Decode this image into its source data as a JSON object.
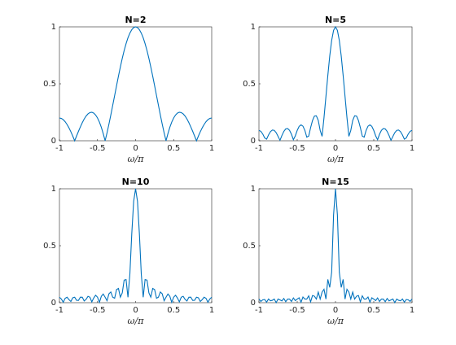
{
  "chart_data": [
    {
      "type": "line",
      "title": "N=2",
      "xlabel": "ω/π",
      "color": "#0072bd",
      "x": [
        -1,
        -0.975,
        -0.95,
        -0.925,
        -0.9,
        -0.875,
        -0.85,
        -0.825,
        -0.8,
        -0.775,
        -0.75,
        -0.725,
        -0.7,
        -0.675,
        -0.65,
        -0.625,
        -0.6,
        -0.575,
        -0.55,
        -0.525,
        -0.5,
        -0.475,
        -0.45,
        -0.425,
        -0.4,
        -0.375,
        -0.35,
        -0.325,
        -0.3,
        -0.275,
        -0.25,
        -0.225,
        -0.2,
        -0.175,
        -0.15,
        -0.125,
        -0.1,
        -0.075,
        -0.05,
        -0.025,
        0,
        0.025,
        0.05,
        0.075,
        0.1,
        0.125,
        0.15,
        0.175,
        0.2,
        0.225,
        0.25,
        0.275,
        0.3,
        0.325,
        0.35,
        0.375,
        0.4,
        0.425,
        0.45,
        0.475,
        0.5,
        0.525,
        0.55,
        0.575,
        0.6,
        0.625,
        0.65,
        0.675,
        0.7,
        0.725,
        0.75,
        0.775,
        0.8,
        0.825,
        0.85,
        0.875,
        0.9,
        0.925,
        0.95,
        0.975,
        1
      ],
      "values": [
        0.2,
        0.196,
        0.185,
        0.167,
        0.143,
        0.113,
        0.079,
        0.041,
        0,
        0.042,
        0.083,
        0.122,
        0.159,
        0.191,
        0.217,
        0.236,
        0.247,
        0.25,
        0.243,
        0.226,
        0.2,
        0.164,
        0.118,
        0.063,
        0,
        0.07,
        0.146,
        0.227,
        0.312,
        0.397,
        0.483,
        0.567,
        0.647,
        0.723,
        0.792,
        0.852,
        0.904,
        0.945,
        0.975,
        0.994,
        1,
        0.994,
        0.975,
        0.945,
        0.904,
        0.852,
        0.792,
        0.723,
        0.647,
        0.567,
        0.483,
        0.397,
        0.312,
        0.227,
        0.146,
        0.07,
        0,
        0.063,
        0.118,
        0.164,
        0.2,
        0.226,
        0.243,
        0.25,
        0.247,
        0.236,
        0.217,
        0.191,
        0.159,
        0.122,
        0.083,
        0.042,
        0,
        0.041,
        0.079,
        0.113,
        0.143,
        0.167,
        0.185,
        0.196,
        0.2
      ],
      "xlim": [
        -1,
        1
      ],
      "ylim": [
        0,
        1
      ],
      "xticks": [
        -1,
        -0.5,
        0,
        0.5,
        1
      ],
      "yticks": [
        0,
        0.5,
        1
      ]
    },
    {
      "type": "line",
      "title": "N=5",
      "xlabel": "ω/π",
      "color": "#0072bd",
      "x": [
        -1,
        -0.975,
        -0.95,
        -0.925,
        -0.9,
        -0.875,
        -0.85,
        -0.825,
        -0.8,
        -0.775,
        -0.75,
        -0.725,
        -0.7,
        -0.675,
        -0.65,
        -0.625,
        -0.6,
        -0.575,
        -0.55,
        -0.525,
        -0.5,
        -0.475,
        -0.45,
        -0.425,
        -0.4,
        -0.375,
        -0.35,
        -0.325,
        -0.3,
        -0.275,
        -0.25,
        -0.225,
        -0.2,
        -0.175,
        -0.15,
        -0.125,
        -0.1,
        -0.075,
        -0.05,
        -0.025,
        0,
        0.025,
        0.05,
        0.075,
        0.1,
        0.125,
        0.15,
        0.175,
        0.2,
        0.225,
        0.25,
        0.275,
        0.3,
        0.325,
        0.35,
        0.375,
        0.4,
        0.425,
        0.45,
        0.475,
        0.5,
        0.525,
        0.55,
        0.575,
        0.6,
        0.625,
        0.65,
        0.675,
        0.7,
        0.725,
        0.75,
        0.775,
        0.8,
        0.825,
        0.85,
        0.875,
        0.9,
        0.925,
        0.95,
        0.975,
        1
      ],
      "values": [
        0.091,
        0.083,
        0.059,
        0.025,
        0.014,
        0.051,
        0.08,
        0.094,
        0.091,
        0.071,
        0.038,
        0.004,
        0.046,
        0.082,
        0.104,
        0.107,
        0.091,
        0.057,
        0.009,
        0.043,
        0.091,
        0.126,
        0.14,
        0.128,
        0.091,
        0.032,
        0.041,
        0.115,
        0.178,
        0.217,
        0.219,
        0.178,
        0.091,
        0.039,
        0.203,
        0.387,
        0.574,
        0.744,
        0.881,
        0.969,
        1,
        0.969,
        0.881,
        0.744,
        0.574,
        0.387,
        0.203,
        0.039,
        0.091,
        0.178,
        0.219,
        0.217,
        0.178,
        0.115,
        0.041,
        0.032,
        0.091,
        0.128,
        0.14,
        0.126,
        0.091,
        0.043,
        0.009,
        0.057,
        0.091,
        0.107,
        0.104,
        0.082,
        0.046,
        0.004,
        0.038,
        0.071,
        0.091,
        0.094,
        0.08,
        0.051,
        0.014,
        0.025,
        0.059,
        0.083,
        0.091
      ],
      "xlim": [
        -1,
        1
      ],
      "ylim": [
        0,
        1
      ],
      "xticks": [
        -1,
        -0.5,
        0,
        0.5,
        1
      ],
      "yticks": [
        0,
        0.5,
        1
      ]
    },
    {
      "type": "line",
      "title": "N=10",
      "xlabel": "ω/π",
      "color": "#0072bd",
      "x": [
        -1,
        -0.975,
        -0.95,
        -0.925,
        -0.9,
        -0.875,
        -0.85,
        -0.825,
        -0.8,
        -0.775,
        -0.75,
        -0.725,
        -0.7,
        -0.675,
        -0.65,
        -0.625,
        -0.6,
        -0.575,
        -0.55,
        -0.525,
        -0.5,
        -0.475,
        -0.45,
        -0.425,
        -0.4,
        -0.375,
        -0.35,
        -0.325,
        -0.3,
        -0.275,
        -0.25,
        -0.225,
        -0.2,
        -0.175,
        -0.15,
        -0.125,
        -0.1,
        -0.075,
        -0.05,
        -0.025,
        0,
        0.025,
        0.05,
        0.075,
        0.1,
        0.125,
        0.15,
        0.175,
        0.2,
        0.225,
        0.25,
        0.275,
        0.3,
        0.325,
        0.35,
        0.375,
        0.4,
        0.425,
        0.45,
        0.475,
        0.5,
        0.525,
        0.55,
        0.575,
        0.6,
        0.625,
        0.65,
        0.675,
        0.7,
        0.725,
        0.75,
        0.775,
        0.8,
        0.825,
        0.85,
        0.875,
        0.9,
        0.925,
        0.95,
        0.975,
        1
      ],
      "values": [
        0.048,
        0.032,
        0.004,
        0.038,
        0.048,
        0.027,
        0.011,
        0.043,
        0.048,
        0.021,
        0.02,
        0.049,
        0.048,
        0.015,
        0.029,
        0.056,
        0.048,
        0.007,
        0.041,
        0.065,
        0.048,
        0.003,
        0.056,
        0.076,
        0.048,
        0.017,
        0.078,
        0.094,
        0.048,
        0.039,
        0.115,
        0.125,
        0.048,
        0.086,
        0.198,
        0.203,
        0.048,
        0.251,
        0.605,
        0.891,
        1,
        0.891,
        0.605,
        0.251,
        0.048,
        0.203,
        0.198,
        0.086,
        0.048,
        0.125,
        0.115,
        0.039,
        0.048,
        0.094,
        0.078,
        0.017,
        0.048,
        0.076,
        0.056,
        0.003,
        0.048,
        0.065,
        0.041,
        0.007,
        0.048,
        0.056,
        0.029,
        0.015,
        0.048,
        0.049,
        0.02,
        0.021,
        0.048,
        0.043,
        0.011,
        0.027,
        0.048,
        0.038,
        0.004,
        0.032,
        0.048
      ],
      "xlim": [
        -1,
        1
      ],
      "ylim": [
        0,
        1
      ],
      "xticks": [
        -1,
        -0.5,
        0,
        0.5,
        1
      ],
      "yticks": [
        0,
        0.5,
        1
      ]
    },
    {
      "type": "line",
      "title": "N=15",
      "xlabel": "ω/π",
      "color": "#0072bd",
      "x": [
        -1,
        -0.975,
        -0.95,
        -0.925,
        -0.9,
        -0.875,
        -0.85,
        -0.825,
        -0.8,
        -0.775,
        -0.75,
        -0.725,
        -0.7,
        -0.675,
        -0.65,
        -0.625,
        -0.6,
        -0.575,
        -0.55,
        -0.525,
        -0.5,
        -0.475,
        -0.45,
        -0.425,
        -0.4,
        -0.375,
        -0.35,
        -0.325,
        -0.3,
        -0.275,
        -0.25,
        -0.225,
        -0.2,
        -0.175,
        -0.15,
        -0.125,
        -0.1,
        -0.075,
        -0.05,
        -0.025,
        0,
        0.025,
        0.05,
        0.075,
        0.1,
        0.125,
        0.15,
        0.175,
        0.2,
        0.225,
        0.25,
        0.275,
        0.3,
        0.325,
        0.35,
        0.375,
        0.4,
        0.425,
        0.45,
        0.475,
        0.5,
        0.525,
        0.55,
        0.575,
        0.6,
        0.625,
        0.65,
        0.675,
        0.7,
        0.725,
        0.75,
        0.775,
        0.8,
        0.825,
        0.85,
        0.875,
        0.9,
        0.925,
        0.95,
        0.975,
        1
      ],
      "values": [
        0.032,
        0.011,
        0.025,
        0.028,
        0.005,
        0.032,
        0.017,
        0.021,
        0.032,
        0.001,
        0.032,
        0.024,
        0.016,
        0.037,
        0.009,
        0.032,
        0.032,
        0.011,
        0.042,
        0.018,
        0.032,
        0.043,
        0.004,
        0.05,
        0.032,
        0.032,
        0.06,
        0.008,
        0.063,
        0.057,
        0.032,
        0.093,
        0.032,
        0.093,
        0.118,
        0.032,
        0.204,
        0.134,
        0.267,
        0.771,
        1,
        0.771,
        0.267,
        0.134,
        0.204,
        0.032,
        0.118,
        0.093,
        0.032,
        0.093,
        0.032,
        0.057,
        0.063,
        0.008,
        0.06,
        0.032,
        0.032,
        0.05,
        0.004,
        0.043,
        0.032,
        0.018,
        0.042,
        0.011,
        0.032,
        0.032,
        0.009,
        0.037,
        0.016,
        0.024,
        0.032,
        0.001,
        0.032,
        0.021,
        0.017,
        0.032,
        0.005,
        0.028,
        0.025,
        0.011,
        0.032
      ],
      "xlim": [
        -1,
        1
      ],
      "ylim": [
        0,
        1
      ],
      "xticks": [
        -1,
        -0.5,
        0,
        0.5,
        1
      ],
      "yticks": [
        0,
        0.5,
        1
      ]
    }
  ]
}
